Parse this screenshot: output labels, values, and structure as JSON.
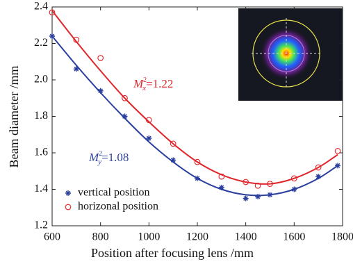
{
  "chart_data": {
    "type": "scatter",
    "xlabel": "Position after focusing lens /mm",
    "ylabel": "Beam diameter /mm",
    "xlim": [
      600,
      1800
    ],
    "ylim": [
      1.2,
      2.4
    ],
    "xticks": [
      600,
      800,
      1000,
      1200,
      1400,
      1600,
      1800
    ],
    "yticks": [
      1.2,
      1.4,
      1.6,
      1.8,
      {
        "value": 2,
        "label": "2.0"
      },
      2.2,
      2.4
    ],
    "legend": "lower left",
    "series": [
      {
        "name": "vertical position",
        "color": "#2a3f9e",
        "marker": "star",
        "x": [
          600,
          700,
          800,
          900,
          1000,
          1100,
          1200,
          1300,
          1400,
          1450,
          1500,
          1600,
          1700,
          1780
        ],
        "values": [
          2.24,
          2.06,
          1.94,
          1.8,
          1.68,
          1.56,
          1.46,
          1.41,
          1.35,
          1.36,
          1.37,
          1.4,
          1.47,
          1.53
        ]
      },
      {
        "name": "horizonal position",
        "color": "#e0262b",
        "marker": "circle",
        "x": [
          600,
          700,
          800,
          900,
          1000,
          1100,
          1200,
          1300,
          1400,
          1450,
          1500,
          1600,
          1700,
          1780
        ],
        "values": [
          2.37,
          2.22,
          2.12,
          1.9,
          1.78,
          1.65,
          1.55,
          1.47,
          1.44,
          1.42,
          1.43,
          1.46,
          1.52,
          1.61
        ]
      },
      {
        "color": "#e0262b",
        "marker": "line",
        "x": [
          600,
          700,
          800,
          900,
          1000,
          1100,
          1200,
          1300,
          1400,
          1500,
          1600,
          1700,
          1780
        ],
        "values": [
          2.38,
          2.21,
          2.05,
          1.9,
          1.77,
          1.65,
          1.55,
          1.48,
          1.44,
          1.43,
          1.46,
          1.52,
          1.59
        ]
      },
      {
        "color": "#2a3f9e",
        "marker": "line",
        "x": [
          600,
          700,
          800,
          900,
          1000,
          1100,
          1200,
          1300,
          1400,
          1500,
          1600,
          1700,
          1780
        ],
        "values": [
          2.24,
          2.08,
          1.93,
          1.79,
          1.66,
          1.55,
          1.46,
          1.4,
          1.37,
          1.37,
          1.4,
          1.46,
          1.53
        ]
      }
    ],
    "annotations": [
      {
        "symbol": "M",
        "superscript": "2",
        "subscript": "x",
        "text": "=1.22",
        "color": "#e0262b"
      },
      {
        "symbol": "M",
        "superscript": "2",
        "subscript": "y",
        "text": "=1.08",
        "color": "#2a3f9e"
      }
    ]
  }
}
